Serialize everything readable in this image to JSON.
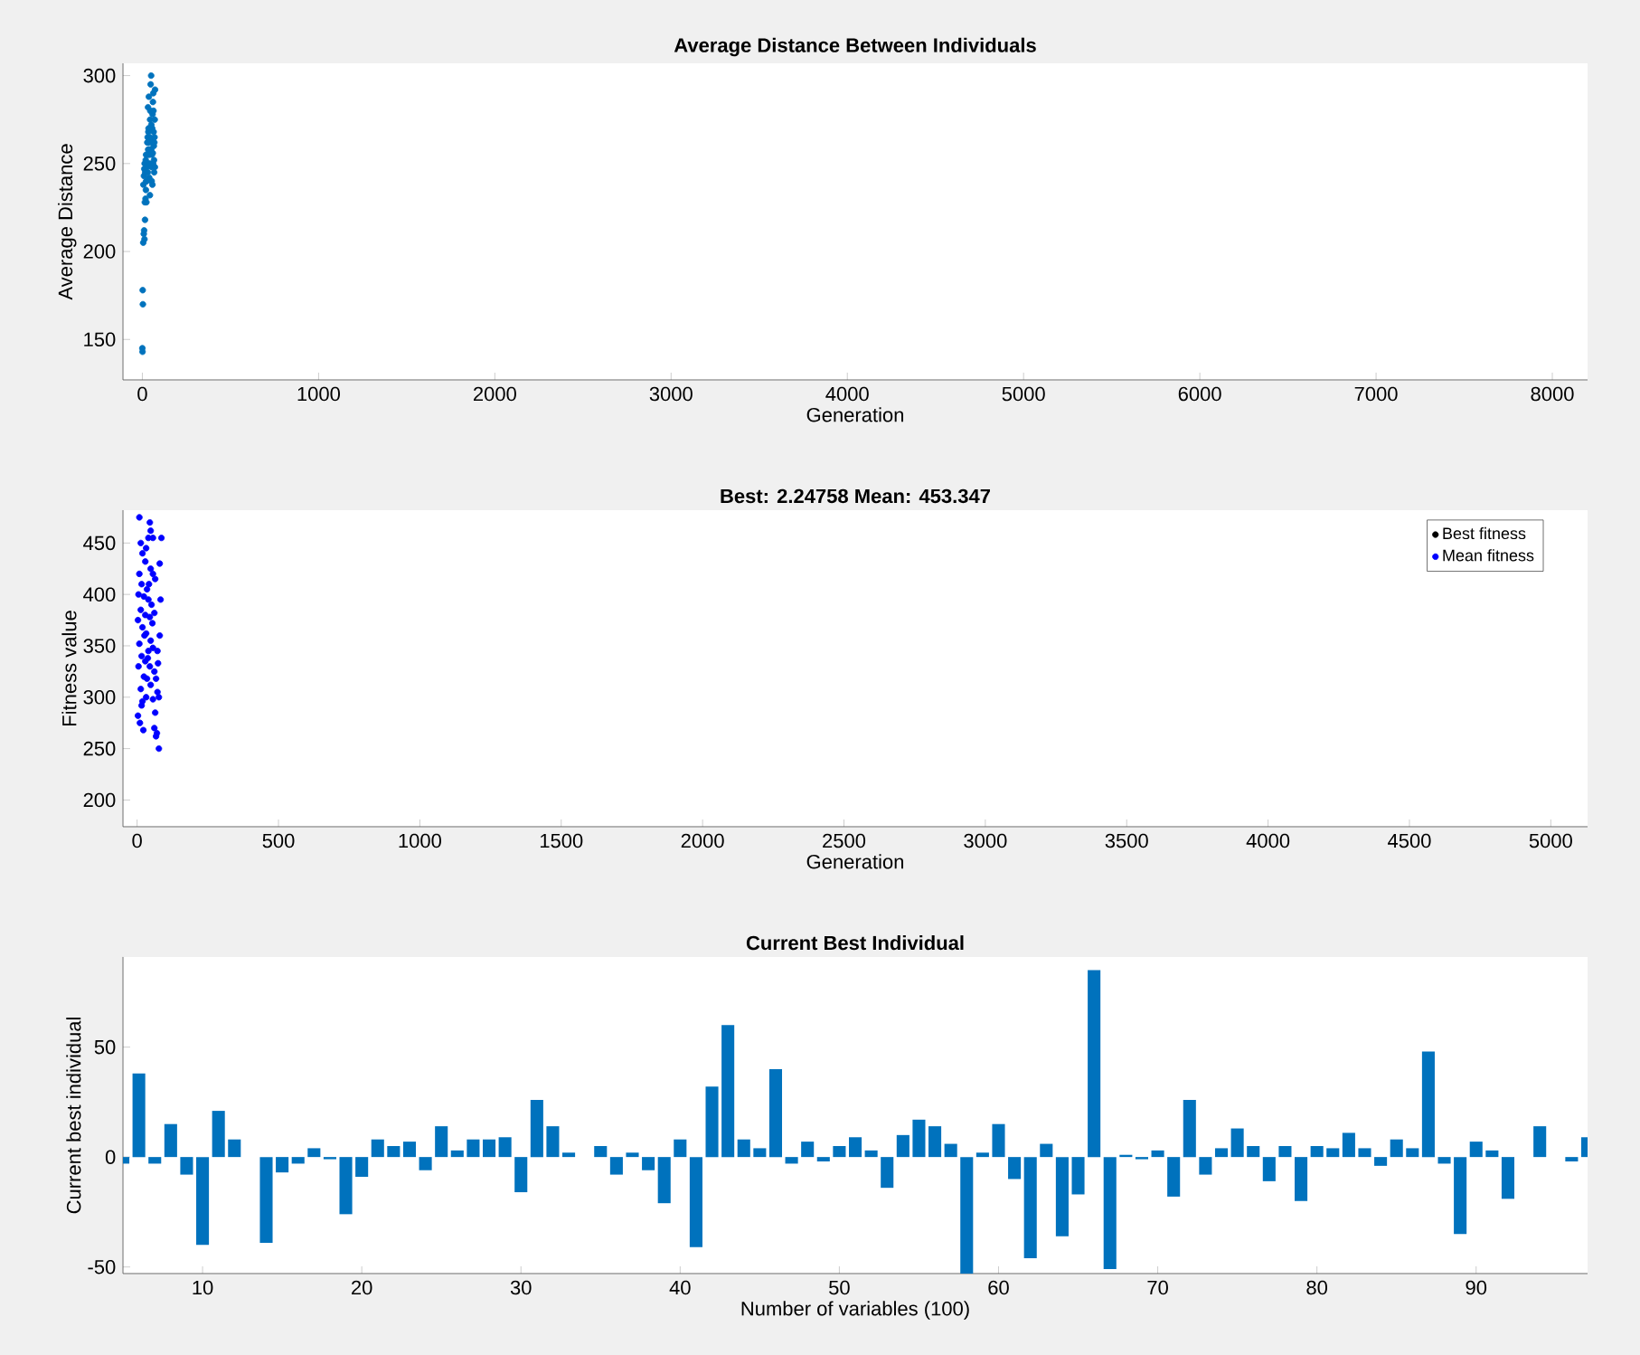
{
  "chart_data": [
    {
      "type": "scatter",
      "title": "Average Distance Between Individuals",
      "xlabel": "Generation",
      "ylabel": "Average Distance",
      "xlim": [
        -110,
        8200
      ],
      "xticks": [
        0,
        1000,
        2000,
        3000,
        4000,
        5000,
        6000,
        7000,
        8000
      ],
      "ylim": [
        127,
        307
      ],
      "yticks": [
        150,
        200,
        250,
        300
      ],
      "x": [
        0,
        1,
        3,
        2,
        5,
        8,
        10,
        12,
        15,
        14,
        18,
        20,
        22,
        6,
        9,
        11,
        13,
        16,
        19,
        21,
        24,
        25,
        28,
        30,
        27,
        31,
        33,
        34,
        35,
        36,
        38,
        40,
        41,
        42,
        44,
        45,
        48,
        50,
        52,
        53,
        54,
        55,
        56,
        58,
        60,
        62,
        63,
        64,
        65,
        66,
        67,
        68,
        70,
        72,
        50,
        47,
        32,
        37,
        43,
        57,
        61,
        69,
        23,
        39,
        51,
        59,
        71
      ],
      "series": [
        {
          "color": "#0072bd",
          "values": [
            145,
            143,
            170,
            178,
            205,
            210,
            212,
            207,
            218,
            228,
            230,
            235,
            240,
            238,
            243,
            247,
            250,
            245,
            252,
            255,
            240,
            248,
            262,
            265,
            255,
            245,
            258,
            268,
            270,
            262,
            255,
            250,
            258,
            265,
            275,
            280,
            263,
            258,
            248,
            240,
            255,
            262,
            270,
            278,
            285,
            290,
            280,
            268,
            260,
            252,
            245,
            262,
            275,
            292,
            300,
            295,
            282,
            288,
            232,
            238,
            250,
            265,
            228,
            242,
            272,
            256,
            248
          ]
        }
      ]
    },
    {
      "type": "scatter",
      "title": "Best: 2.24758 Mean: 453.347",
      "xlabel": "Generation",
      "ylabel": "Fitness value",
      "legend": "top right",
      "xlim": [
        -50,
        5130
      ],
      "xticks": [
        0,
        500,
        1000,
        1500,
        2000,
        2500,
        3000,
        3500,
        4000,
        4500,
        5000
      ],
      "ylim": [
        174,
        482
      ],
      "yticks": [
        200,
        250,
        300,
        350,
        400,
        450
      ],
      "series": [
        {
          "name": "Best fitness",
          "color": "#000000"
        },
        {
          "name": "Mean fitness",
          "color": "#0000ff",
          "x": [
            8,
            45,
            48,
            40,
            13,
            56,
            32,
            19,
            29,
            48,
            56,
            8,
            16,
            35,
            64,
            5,
            24,
            40,
            51,
            13,
            29,
            45,
            61,
            3,
            19,
            32,
            48,
            8,
            40,
            56,
            72,
            16,
            29,
            45,
            5,
            61,
            24,
            35,
            67,
            48,
            13,
            72,
            32,
            56,
            77,
            16,
            64,
            3,
            10,
            22,
            61,
            67,
            77,
            70,
            38,
            80,
            83,
            80,
            86,
            26,
            42,
            54,
            74,
            19
          ],
          "values": [
            475,
            470,
            462,
            455,
            450,
            455,
            445,
            440,
            432,
            425,
            420,
            420,
            410,
            405,
            415,
            400,
            398,
            395,
            390,
            385,
            380,
            378,
            382,
            375,
            368,
            362,
            355,
            352,
            345,
            348,
            345,
            340,
            335,
            330,
            330,
            325,
            320,
            318,
            318,
            312,
            308,
            305,
            300,
            298,
            300,
            292,
            285,
            282,
            275,
            268,
            270,
            262,
            250,
            265,
            338,
            360,
            395,
            430,
            455,
            360,
            410,
            372,
            333,
            296
          ]
        }
      ]
    },
    {
      "type": "bar",
      "title": "Current Best Individual",
      "xlabel": "Number of variables (100)",
      "ylabel": "Current best individual",
      "xlim": [
        5,
        97
      ],
      "xticks": [
        10,
        20,
        30,
        40,
        50,
        60,
        70,
        80,
        90
      ],
      "ylim": [
        -53,
        91
      ],
      "yticks": [
        -50,
        0,
        50
      ],
      "x": [
        5,
        6,
        7,
        8,
        9,
        10,
        11,
        12,
        13,
        14,
        15,
        16,
        17,
        18,
        19,
        20,
        21,
        22,
        23,
        24,
        25,
        26,
        27,
        28,
        29,
        30,
        31,
        32,
        33,
        34,
        35,
        36,
        37,
        38,
        39,
        40,
        41,
        42,
        43,
        44,
        45,
        46,
        47,
        48,
        49,
        50,
        51,
        52,
        53,
        54,
        55,
        56,
        57,
        58,
        59,
        60,
        61,
        62,
        63,
        64,
        65,
        66,
        67,
        68,
        69,
        70,
        71,
        72,
        73,
        74,
        75,
        76,
        77,
        78,
        79,
        80,
        81,
        82,
        83,
        84,
        85,
        86,
        87,
        88,
        89,
        90,
        91,
        92,
        93,
        94,
        95,
        96,
        97
      ],
      "series": [
        {
          "color": "#0072bd",
          "values": [
            -3,
            38,
            -3,
            15,
            -8,
            -40,
            21,
            8,
            0,
            -39,
            -7,
            -3,
            4,
            -1,
            -26,
            -9,
            8,
            5,
            7,
            -6,
            14,
            3,
            8,
            8,
            9,
            -16,
            26,
            14,
            2,
            0,
            5,
            -8,
            2,
            -6,
            -21,
            8,
            -41,
            32,
            60,
            8,
            4,
            40,
            -3,
            7,
            -2,
            5,
            9,
            3,
            -14,
            10,
            17,
            14,
            6,
            -53,
            2,
            15,
            -10,
            -46,
            6,
            -36,
            -17,
            85,
            -51,
            1,
            -1,
            3,
            -18,
            26,
            -8,
            4,
            13,
            5,
            -11,
            5,
            -20,
            5,
            4,
            11,
            4,
            -4,
            8,
            4,
            48,
            -3,
            -35,
            7,
            3,
            -19,
            0,
            14,
            0,
            -2,
            9
          ]
        }
      ]
    }
  ]
}
